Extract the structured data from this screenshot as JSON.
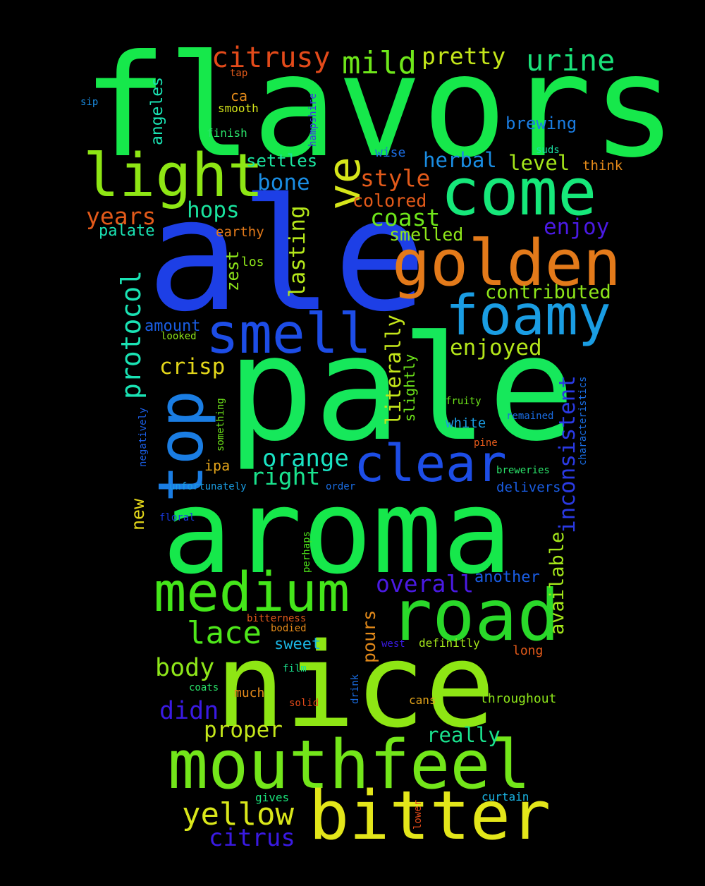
{
  "words": [
    {
      "text": "flavors",
      "color": "#16e84b",
      "vertical": false
    },
    {
      "text": "ale",
      "color": "#1d3fe6",
      "vertical": false
    },
    {
      "text": "pale",
      "color": "#16e85b",
      "vertical": false
    },
    {
      "text": "aroma",
      "color": "#16e84b",
      "vertical": false
    },
    {
      "text": "nice",
      "color": "#8ee614",
      "vertical": false
    },
    {
      "text": "mouthfeel",
      "color": "#73e61a",
      "vertical": false
    },
    {
      "text": "bitter",
      "color": "#e3e61a",
      "vertical": false
    },
    {
      "text": "medium",
      "color": "#44e61a",
      "vertical": false
    },
    {
      "text": "road",
      "color": "#2ad92a",
      "vertical": false
    },
    {
      "text": "golden",
      "color": "#e37a1a",
      "vertical": false
    },
    {
      "text": "come",
      "color": "#16e87a",
      "vertical": false
    },
    {
      "text": "light",
      "color": "#8ee614",
      "vertical": false
    },
    {
      "text": "smell",
      "color": "#1d4de6",
      "vertical": false
    },
    {
      "text": "foamy",
      "color": "#1a9de3",
      "vertical": false
    },
    {
      "text": "clear",
      "color": "#1d4de6",
      "vertical": false
    },
    {
      "text": "top",
      "color": "#1a7de3",
      "vertical": true
    },
    {
      "text": "ve",
      "color": "#d6e61a",
      "vertical": true
    },
    {
      "text": "citrusy",
      "color": "#e34a1a",
      "vertical": false
    },
    {
      "text": "mild",
      "color": "#6ee61a",
      "vertical": false
    },
    {
      "text": "pretty",
      "color": "#c4e61a",
      "vertical": false
    },
    {
      "text": "urine",
      "color": "#1ae37a",
      "vertical": false
    },
    {
      "text": "yellow",
      "color": "#d9e61a",
      "vertical": false
    },
    {
      "text": "citrus",
      "color": "#3a1ae3",
      "vertical": false
    },
    {
      "text": "protocol",
      "color": "#1ae3b4",
      "vertical": true
    },
    {
      "text": "lace",
      "color": "#4ee61a",
      "vertical": false
    },
    {
      "text": "body",
      "color": "#8ee61a",
      "vertical": false
    },
    {
      "text": "didn",
      "color": "#3a1ae3",
      "vertical": false
    },
    {
      "text": "proper",
      "color": "#c4e61a",
      "vertical": false
    },
    {
      "text": "really",
      "color": "#1ae38e",
      "vertical": false
    },
    {
      "text": "overall",
      "color": "#4a1ae3",
      "vertical": false
    },
    {
      "text": "enjoyed",
      "color": "#b4e61a",
      "vertical": false
    },
    {
      "text": "orange",
      "color": "#1ae3c4",
      "vertical": false
    },
    {
      "text": "right",
      "color": "#1ae38e",
      "vertical": false
    },
    {
      "text": "crisp",
      "color": "#e3d61a",
      "vertical": false
    },
    {
      "text": "hops",
      "color": "#1ae39e",
      "vertical": false
    },
    {
      "text": "years",
      "color": "#e35a1a",
      "vertical": false
    },
    {
      "text": "style",
      "color": "#e35a1a",
      "vertical": false
    },
    {
      "text": "coast",
      "color": "#6ee61a",
      "vertical": false
    },
    {
      "text": "bone",
      "color": "#1a8de3",
      "vertical": false
    },
    {
      "text": "herbal",
      "color": "#1a8de3",
      "vertical": false
    },
    {
      "text": "level",
      "color": "#a4e61a",
      "vertical": false
    },
    {
      "text": "enjoy",
      "color": "#4a1ae3",
      "vertical": false
    },
    {
      "text": "contributed",
      "color": "#8ee61a",
      "vertical": false
    },
    {
      "text": "inconsistent",
      "color": "#2a3ae3",
      "vertical": true
    },
    {
      "text": "lasting",
      "color": "#b4e61a",
      "vertical": true
    },
    {
      "text": "literally",
      "color": "#c4e61a",
      "vertical": true
    },
    {
      "text": "available",
      "color": "#a4e61a",
      "vertical": true
    },
    {
      "text": "smelled",
      "color": "#8ee61a",
      "vertical": false
    },
    {
      "text": "colored",
      "color": "#e35a1a",
      "vertical": false
    },
    {
      "text": "settles",
      "color": "#1ae39e",
      "vertical": false
    },
    {
      "text": "brewing",
      "color": "#1a7de3",
      "vertical": false
    },
    {
      "text": "angeles",
      "color": "#1ae3b4",
      "vertical": true
    },
    {
      "text": "palate",
      "color": "#1ae3b4",
      "vertical": false
    },
    {
      "text": "zest",
      "color": "#8ee61a",
      "vertical": true
    },
    {
      "text": "amount",
      "color": "#1a5de3",
      "vertical": false
    },
    {
      "text": "new",
      "color": "#e3d61a",
      "vertical": true
    },
    {
      "text": "pours",
      "color": "#e38a1a",
      "vertical": true
    },
    {
      "text": "sweet",
      "color": "#1ab4e3",
      "vertical": false
    },
    {
      "text": "another",
      "color": "#1a5de3",
      "vertical": false
    },
    {
      "text": "delivers",
      "color": "#1a5de3",
      "vertical": false
    },
    {
      "text": "slightly",
      "color": "#6ee61a",
      "vertical": true
    },
    {
      "text": "white",
      "color": "#1a9de3",
      "vertical": false
    },
    {
      "text": "ipa",
      "color": "#e3a41a",
      "vertical": false
    },
    {
      "text": "think",
      "color": "#e38a1a",
      "vertical": false
    },
    {
      "text": "earthy",
      "color": "#e37a1a",
      "vertical": false
    },
    {
      "text": "los",
      "color": "#8ee61a",
      "vertical": false
    },
    {
      "text": "wise",
      "color": "#1a6de3",
      "vertical": false
    },
    {
      "text": "ca",
      "color": "#e38a1a",
      "vertical": false
    },
    {
      "text": "smooth",
      "color": "#d6e61a",
      "vertical": false
    },
    {
      "text": "finish",
      "color": "#2ae36a",
      "vertical": false
    },
    {
      "text": "tap",
      "color": "#e35a1a",
      "vertical": false
    },
    {
      "text": "sip",
      "color": "#1a8de3",
      "vertical": false
    },
    {
      "text": "hampshire",
      "color": "#3a3ae3",
      "vertical": true
    },
    {
      "text": "suds",
      "color": "#1ae3a4",
      "vertical": false
    },
    {
      "text": "looked",
      "color": "#8ee61a",
      "vertical": false
    },
    {
      "text": "fruity",
      "color": "#6ee61a",
      "vertical": false
    },
    {
      "text": "remained",
      "color": "#1a6de3",
      "vertical": false
    },
    {
      "text": "pine",
      "color": "#e35a1a",
      "vertical": false
    },
    {
      "text": "breweries",
      "color": "#2ae36a",
      "vertical": false
    },
    {
      "text": "characteristics",
      "color": "#1a6de3",
      "vertical": true
    },
    {
      "text": "something",
      "color": "#6ee61a",
      "vertical": true
    },
    {
      "text": "negatively",
      "color": "#1a5de3",
      "vertical": true
    },
    {
      "text": "unfortunately",
      "color": "#1a9de3",
      "vertical": false
    },
    {
      "text": "order",
      "color": "#1a6de3",
      "vertical": false
    },
    {
      "text": "floral",
      "color": "#1a3ae3",
      "vertical": false
    },
    {
      "text": "perhaps",
      "color": "#4ee61a",
      "vertical": true
    },
    {
      "text": "bitterness",
      "color": "#e35a1a",
      "vertical": false
    },
    {
      "text": "bodied",
      "color": "#e38a1a",
      "vertical": false
    },
    {
      "text": "west",
      "color": "#3a1ae3",
      "vertical": false
    },
    {
      "text": "definitly",
      "color": "#a4e61a",
      "vertical": false
    },
    {
      "text": "long",
      "color": "#e35a1a",
      "vertical": false
    },
    {
      "text": "film",
      "color": "#1ae38e",
      "vertical": false
    },
    {
      "text": "coats",
      "color": "#2ae36a",
      "vertical": false
    },
    {
      "text": "much",
      "color": "#e38a1a",
      "vertical": false
    },
    {
      "text": "solid",
      "color": "#e34a1a",
      "vertical": false
    },
    {
      "text": "drink",
      "color": "#1a6de3",
      "vertical": true
    },
    {
      "text": "cans",
      "color": "#e3a41a",
      "vertical": false
    },
    {
      "text": "throughout",
      "color": "#8ee61a",
      "vertical": false
    },
    {
      "text": "gives",
      "color": "#1ae37a",
      "vertical": false
    },
    {
      "text": "curtain",
      "color": "#1ab4e3",
      "vertical": false
    },
    {
      "text": "lower",
      "color": "#e34a1a",
      "vertical": true
    }
  ]
}
